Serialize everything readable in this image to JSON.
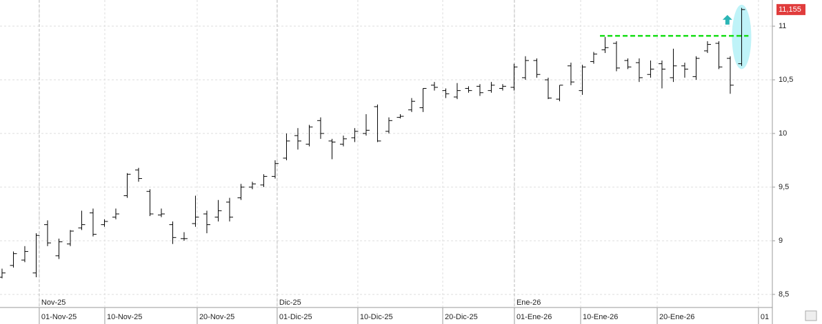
{
  "chart_data": {
    "type": "ohlc",
    "series": [
      {
        "color": "#000000",
        "open": [
          8.66,
          8.77,
          8.82,
          8.7,
          9.15,
          8.86,
          8.97,
          9.12,
          9.26,
          9.15,
          9.22,
          9.42,
          9.66,
          9.46,
          9.24,
          9.15,
          9.02,
          9.16,
          9.25,
          9.22,
          9.36,
          9.4,
          9.5,
          9.52,
          9.6,
          9.77,
          9.98,
          9.9,
          10.12,
          9.93,
          9.9,
          9.96,
          10.0,
          10.25,
          10.02,
          10.15,
          10.22,
          10.24,
          10.45,
          10.4,
          10.34,
          10.42,
          10.44,
          10.4,
          10.42,
          10.43,
          10.52,
          10.68,
          10.5,
          10.32,
          10.63,
          10.4,
          10.67,
          10.78,
          10.84,
          10.68,
          10.66,
          10.55,
          10.65,
          10.52,
          10.63,
          10.53,
          10.77,
          10.84,
          10.7,
          10.65
        ],
        "high": [
          8.74,
          8.9,
          8.95,
          9.07,
          9.19,
          9.02,
          9.1,
          9.28,
          9.3,
          9.2,
          9.3,
          9.63,
          9.68,
          9.48,
          9.3,
          9.18,
          9.08,
          9.42,
          9.28,
          9.38,
          9.4,
          9.53,
          9.55,
          9.62,
          9.75,
          10.0,
          10.05,
          10.08,
          10.15,
          9.95,
          9.98,
          10.05,
          10.18,
          10.27,
          10.15,
          10.18,
          10.33,
          10.42,
          10.48,
          10.42,
          10.47,
          10.44,
          10.46,
          10.48,
          10.46,
          10.65,
          10.72,
          10.7,
          10.52,
          10.45,
          10.66,
          10.64,
          10.76,
          10.9,
          10.86,
          10.7,
          10.7,
          10.68,
          10.68,
          10.79,
          10.66,
          10.72,
          10.86,
          10.86,
          10.72,
          11.17
        ],
        "low": [
          8.65,
          8.75,
          8.8,
          8.66,
          8.95,
          8.83,
          8.95,
          9.1,
          9.04,
          9.13,
          9.2,
          9.4,
          9.55,
          9.23,
          9.22,
          8.97,
          9.0,
          9.13,
          9.07,
          9.18,
          9.18,
          9.38,
          9.48,
          9.5,
          9.58,
          9.75,
          9.85,
          9.88,
          9.95,
          9.76,
          9.88,
          9.92,
          9.98,
          9.92,
          10.0,
          10.14,
          10.2,
          10.2,
          10.4,
          10.33,
          10.32,
          10.38,
          10.35,
          10.38,
          10.4,
          10.4,
          10.5,
          10.52,
          10.32,
          10.3,
          10.45,
          10.36,
          10.65,
          10.75,
          10.58,
          10.6,
          10.48,
          10.52,
          10.42,
          10.48,
          10.52,
          10.5,
          10.75,
          10.6,
          10.37,
          10.63
        ],
        "close": [
          8.7,
          8.88,
          8.9,
          9.05,
          8.98,
          8.99,
          9.09,
          9.15,
          9.06,
          9.18,
          9.25,
          9.62,
          9.58,
          9.25,
          9.25,
          9.03,
          9.02,
          9.22,
          9.15,
          9.28,
          9.22,
          9.5,
          9.53,
          9.6,
          9.72,
          9.93,
          9.93,
          10.06,
          10.0,
          9.92,
          9.95,
          10.02,
          10.03,
          9.93,
          10.12,
          10.16,
          10.3,
          10.42,
          10.43,
          10.37,
          10.4,
          10.4,
          10.38,
          10.45,
          10.44,
          10.62,
          10.68,
          10.55,
          10.33,
          10.45,
          10.48,
          10.62,
          10.74,
          10.8,
          10.61,
          10.62,
          10.52,
          10.6,
          10.6,
          10.63,
          10.6,
          10.7,
          10.83,
          10.62,
          10.45,
          11.155
        ]
      }
    ],
    "ylim": [
      8.378,
      11.244
    ],
    "yticks": [
      {
        "value": 8.5,
        "label": "8,5"
      },
      9,
      {
        "value": 9.5,
        "label": "9,5"
      },
      10,
      {
        "value": 10.5,
        "label": "10,5"
      },
      11
    ],
    "xlim": [
      -0.18,
      67.7
    ],
    "xticks": [
      {
        "value": 3.27,
        "label": "01-Nov-25"
      },
      {
        "value": 9.03,
        "label": "10-Nov-25"
      },
      {
        "value": 17.15,
        "label": "20-Nov-25"
      },
      {
        "value": 24.18,
        "label": "01-Dic-25"
      },
      {
        "value": 31.27,
        "label": "10-Dic-25"
      },
      {
        "value": 38.73,
        "label": "20-Dic-25"
      },
      {
        "value": 45.03,
        "label": "01-Ene-26"
      },
      {
        "value": 50.85,
        "label": "10-Ene-26"
      },
      {
        "value": 57.58,
        "label": "20-Ene-26"
      },
      {
        "value": 66.48,
        "label": "01"
      }
    ],
    "month_ticks": [
      {
        "value": 3.27,
        "label": "Nov-25"
      },
      {
        "value": 24.18,
        "label": "Dic-25"
      },
      {
        "value": 45.03,
        "label": "Ene-26"
      }
    ],
    "last_price": {
      "value": 11.155,
      "label": "11,155",
      "color": "#e03c3c"
    },
    "resistance": {
      "y": 10.91,
      "x": [
        52.55,
        65.6
      ],
      "color": "#11dd11"
    },
    "highlight": {
      "x": 65,
      "y": [
        10.6,
        11.2
      ],
      "color": "#bff3f8"
    },
    "arrow": {
      "x": 63.75,
      "y": 11.06,
      "color": "#2bb5b5"
    },
    "grid": true
  }
}
